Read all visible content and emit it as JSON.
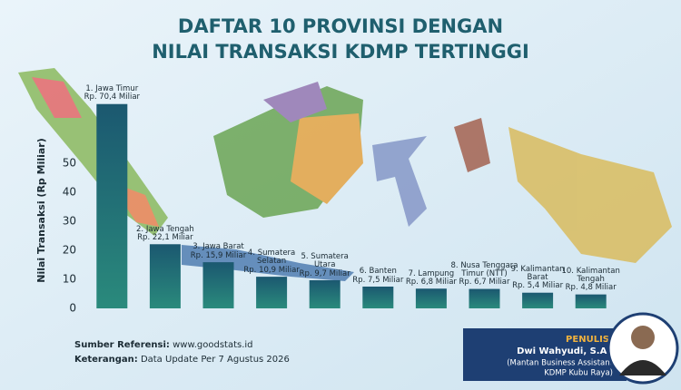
{
  "chart_data": {
    "type": "bar",
    "title": [
      "DAFTAR 10 PROVINSI DENGAN",
      "NILAI TRANSAKSI KDMP TERTINGGI"
    ],
    "y_label": "Nilai Transaksi (Rp Miliar)",
    "categories": [
      "1. Jawa Timur",
      "2. Jawa Tengah",
      "3. Jawa Barat",
      "4. Sumatera Selatan",
      "5. Sumatera Utara",
      "6. Banten",
      "7. Lampung",
      "8. Nusa Tenggara Timur (NTT)",
      "9. Kalimantan Barat",
      "10. Kalimantan Tengah"
    ],
    "values": [
      70.4,
      22.1,
      15.9,
      10.9,
      9.7,
      7.5,
      6.8,
      6.7,
      5.4,
      4.8
    ],
    "value_labels": [
      "Rp. 70,4 Miliar",
      "Rp. 22,1 Miliar",
      "Rp. 15,9 Miliar",
      "Rp. 10,9 Miliar",
      "Rp. 9,7 Miliar",
      "Rp. 7,5 Miliar",
      "Rp. 6,8 Miliar",
      "Rp. 6,7 Miliar",
      "Rp. 5,4 Miliar",
      "Rp. 4,8 Miliar"
    ],
    "color": "#1d5e72",
    "ylim": [
      0,
      75
    ],
    "yticks": [
      0,
      10,
      20,
      30,
      40,
      50
    ]
  },
  "footer": {
    "source_label": "Sumber Referensi:",
    "source_value": "www.goodstats.id",
    "note_label": "Keterangan:",
    "note_value": "Data Update Per 7 Agustus 2026"
  },
  "author": {
    "heading": "PENULIS:",
    "name": "Dwi Wahyudi, S.Ak",
    "role_1": "(Mantan Business Assistant",
    "role_2": "KDMP Kubu Raya)"
  }
}
